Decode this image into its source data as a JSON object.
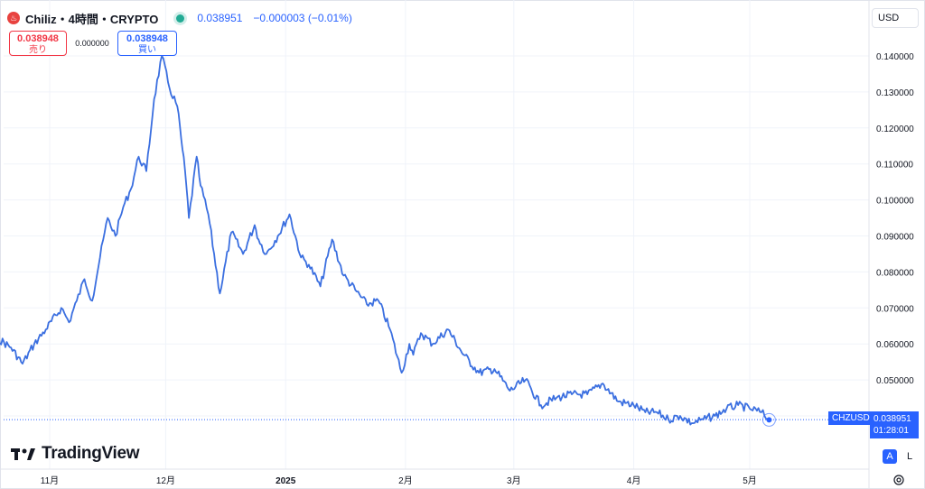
{
  "header": {
    "title": "Chiliz・4時間・CRYPTO",
    "symbol_icon": "chiliz-logo-icon",
    "price": "0.038951",
    "change": "−0.000003 (−0.01%)",
    "accent_color": "#2962ff"
  },
  "trade": {
    "sell_price": "0.038948",
    "sell_label": "売り",
    "spread": "0.000000",
    "buy_price": "0.038948",
    "buy_label": "買い"
  },
  "currency": "USD",
  "brand": "TradingView",
  "last_price_tag": {
    "symbol": "CHZUSD",
    "price": "0.038951",
    "countdown": "01:28:01"
  },
  "scale_modes": {
    "auto": "A",
    "log": "L"
  },
  "chart_data": {
    "type": "line",
    "series": [
      {
        "color": "#3b6fe0",
        "x": [
          "2024-10-10",
          "2024-10-14",
          "2024-10-18",
          "2024-10-22",
          "2024-10-25",
          "2024-10-28",
          "2024-10-31",
          "2024-11-04",
          "2024-11-06",
          "2024-11-08",
          "2024-11-10",
          "2024-11-12",
          "2024-11-14",
          "2024-11-16",
          "2024-11-18",
          "2024-11-20",
          "2024-11-22",
          "2024-11-24",
          "2024-11-26",
          "2024-11-28",
          "2024-11-30",
          "2024-12-02",
          "2024-12-04",
          "2024-12-05",
          "2024-12-06",
          "2024-12-07",
          "2024-12-09",
          "2024-12-10",
          "2024-12-12",
          "2024-12-15",
          "2024-12-18",
          "2024-12-21",
          "2024-12-24",
          "2024-12-25",
          "2024-12-27",
          "2024-12-30",
          "2025-01-02",
          "2025-01-05",
          "2025-01-07",
          "2025-01-10",
          "2025-01-13",
          "2025-01-16",
          "2025-01-19",
          "2025-01-22",
          "2025-01-25",
          "2025-01-28",
          "2025-01-31",
          "2025-02-02",
          "2025-02-03",
          "2025-02-05",
          "2025-02-08",
          "2025-02-12",
          "2025-02-16",
          "2025-02-20",
          "2025-02-24",
          "2025-02-28",
          "2025-03-04",
          "2025-03-08",
          "2025-03-12",
          "2025-03-16",
          "2025-03-20",
          "2025-03-24",
          "2025-03-28",
          "2025-04-01",
          "2025-04-04",
          "2025-04-07",
          "2025-04-10",
          "2025-04-13",
          "2025-04-16",
          "2025-04-19",
          "2025-04-22",
          "2025-04-25",
          "2025-04-28",
          "2025-05-01",
          "2025-05-04",
          "2025-05-06"
        ],
        "y": [
          0.075,
          0.067,
          0.062,
          0.059,
          0.0545,
          0.06,
          0.064,
          0.07,
          0.066,
          0.072,
          0.078,
          0.072,
          0.084,
          0.095,
          0.09,
          0.098,
          0.103,
          0.112,
          0.108,
          0.128,
          0.14,
          0.131,
          0.126,
          0.117,
          0.108,
          0.095,
          0.112,
          0.104,
          0.096,
          0.074,
          0.091,
          0.085,
          0.093,
          0.089,
          0.085,
          0.09,
          0.096,
          0.084,
          0.082,
          0.076,
          0.089,
          0.079,
          0.075,
          0.071,
          0.072,
          0.064,
          0.052,
          0.06,
          0.057,
          0.063,
          0.06,
          0.064,
          0.057,
          0.052,
          0.053,
          0.047,
          0.05,
          0.043,
          0.045,
          0.046,
          0.046,
          0.049,
          0.044,
          0.043,
          0.041,
          0.041,
          0.039,
          0.04,
          0.038,
          0.039,
          0.04,
          0.042,
          0.043,
          0.042,
          0.041,
          0.0389
        ]
      }
    ],
    "y_ticks": [
      "0.140000",
      "0.130000",
      "0.120000",
      "0.110000",
      "0.100000",
      "0.090000",
      "0.080000",
      "0.070000",
      "0.060000",
      "0.050000",
      "0.040000"
    ],
    "y_tick_values": [
      0.14,
      0.13,
      0.12,
      0.11,
      0.1,
      0.09,
      0.08,
      0.07,
      0.06,
      0.05,
      0.04
    ],
    "x_ticks": [
      {
        "label": "11月",
        "date": "2024-11-01",
        "bold": false
      },
      {
        "label": "12月",
        "date": "2024-12-01",
        "bold": false
      },
      {
        "label": "2025",
        "date": "2025-01-01",
        "bold": true
      },
      {
        "label": "2月",
        "date": "2025-02-01",
        "bold": false
      },
      {
        "label": "3月",
        "date": "2025-03-01",
        "bold": false
      },
      {
        "label": "4月",
        "date": "2025-04-01",
        "bold": false
      },
      {
        "label": "5月",
        "date": "2025-05-01",
        "bold": false
      }
    ],
    "last_value": 0.038951,
    "grid": true
  }
}
